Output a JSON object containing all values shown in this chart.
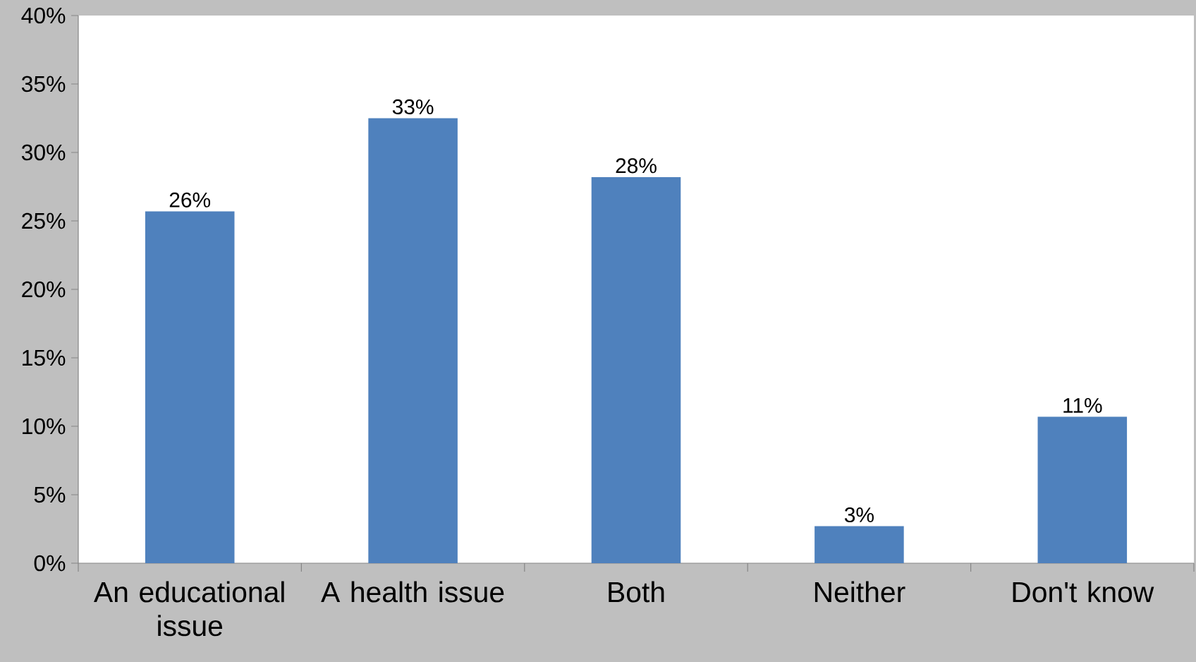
{
  "chart_data": {
    "type": "bar",
    "categories": [
      "An educational issue",
      "A health issue",
      "Both",
      "Neither",
      "Don't know"
    ],
    "values": [
      25.7,
      32.5,
      28.2,
      2.7,
      10.7
    ],
    "value_labels": [
      "26%",
      "33%",
      "28%",
      "3%",
      "11%"
    ],
    "color": "#4f81bd",
    "ylim": [
      0,
      40
    ],
    "yticks": [
      {
        "value": 0,
        "label": "0%"
      },
      {
        "value": 5,
        "label": "5%"
      },
      {
        "value": 10,
        "label": "10%"
      },
      {
        "value": 15,
        "label": "15%"
      },
      {
        "value": 20,
        "label": "20%"
      },
      {
        "value": 25,
        "label": "25%"
      },
      {
        "value": 30,
        "label": "30%"
      },
      {
        "value": 35,
        "label": "35%"
      },
      {
        "value": 40,
        "label": "40%"
      }
    ],
    "grid": false
  }
}
